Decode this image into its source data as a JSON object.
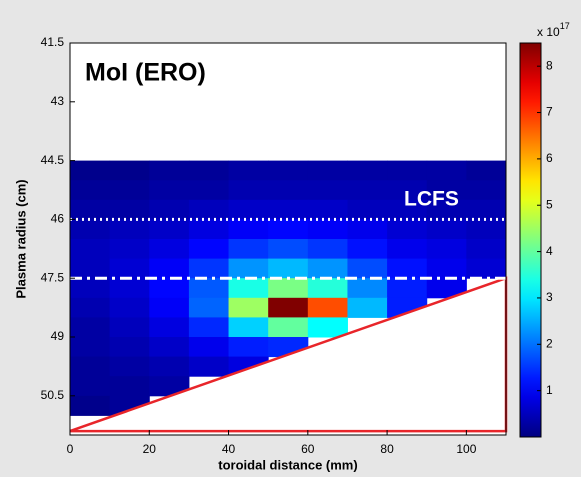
{
  "chart_data": {
    "type": "heatmap",
    "title": "MoI (ERO)",
    "annotation": "LCFS",
    "x_label": "toroidal distance (mm)",
    "y_label": "Plasma radius (cm)",
    "xlim": [
      0,
      110
    ],
    "xticks": [
      0,
      20,
      40,
      60,
      80,
      100
    ],
    "ylim": [
      41.5,
      51.5
    ],
    "yticks": [
      41.5,
      43,
      44.5,
      46,
      47.5,
      49,
      50.5
    ],
    "y_inverted": true,
    "colormap": "jet",
    "clim": [
      0,
      8.5
    ],
    "cticks": [
      1,
      2,
      3,
      4,
      5,
      6,
      7,
      8
    ],
    "colorbar_label": "x 10",
    "colorbar_exponent": "17",
    "xbins": [
      0,
      10,
      20,
      30,
      40,
      50,
      60,
      70,
      80,
      90,
      100,
      110
    ],
    "ybins": [
      44.5,
      45,
      45.5,
      46,
      46.5,
      47,
      47.5,
      48,
      48.5,
      49,
      49.5,
      50,
      50.5,
      51
    ],
    "values": [
      [
        0.1,
        0.1,
        0.2,
        0.2,
        0.3,
        0.3,
        0.3,
        0.3,
        0.3,
        0.3,
        0.2
      ],
      [
        0.2,
        0.2,
        0.3,
        0.3,
        0.4,
        0.4,
        0.4,
        0.4,
        0.4,
        0.3,
        0.3
      ],
      [
        0.3,
        0.3,
        0.4,
        0.5,
        0.6,
        0.6,
        0.6,
        0.5,
        0.5,
        0.4,
        0.4
      ],
      [
        0.4,
        0.5,
        0.6,
        0.8,
        1.0,
        1.1,
        1.0,
        0.9,
        0.7,
        0.6,
        0.5
      ],
      [
        0.5,
        0.6,
        0.8,
        1.1,
        1.5,
        1.7,
        1.5,
        1.2,
        0.9,
        0.8,
        0.6
      ],
      [
        0.5,
        0.7,
        1.0,
        1.5,
        2.3,
        2.6,
        2.3,
        1.7,
        1.2,
        0.9,
        0.7
      ],
      [
        0.5,
        0.7,
        1.1,
        1.8,
        3.4,
        4.2,
        3.5,
        2.2,
        1.3,
        0.9,
        null
      ],
      [
        0.4,
        0.6,
        1.0,
        1.9,
        4.5,
        8.5,
        6.8,
        2.6,
        1.3,
        null,
        null
      ],
      [
        0.3,
        0.5,
        0.8,
        1.4,
        2.8,
        4.0,
        3.2,
        null,
        null,
        null,
        null
      ],
      [
        0.3,
        0.4,
        0.6,
        0.9,
        1.3,
        1.4,
        null,
        null,
        null,
        null,
        null
      ],
      [
        0.2,
        0.3,
        0.4,
        0.6,
        0.8,
        null,
        null,
        null,
        null,
        null,
        null
      ],
      [
        0.2,
        0.2,
        0.3,
        null,
        null,
        null,
        null,
        null,
        null,
        null,
        null
      ],
      [
        0.1,
        0.2,
        null,
        null,
        null,
        null,
        null,
        null,
        null,
        null,
        null
      ]
    ],
    "hlines": [
      {
        "y": 46,
        "style": "dotted",
        "color": "#ffffff"
      },
      {
        "y": 47.5,
        "style": "dashdot",
        "color": "#ffffff"
      }
    ],
    "wall": {
      "x": [
        0,
        110,
        110
      ],
      "y": [
        51.4,
        47.5,
        51.4
      ],
      "color": "#e8252a"
    }
  }
}
